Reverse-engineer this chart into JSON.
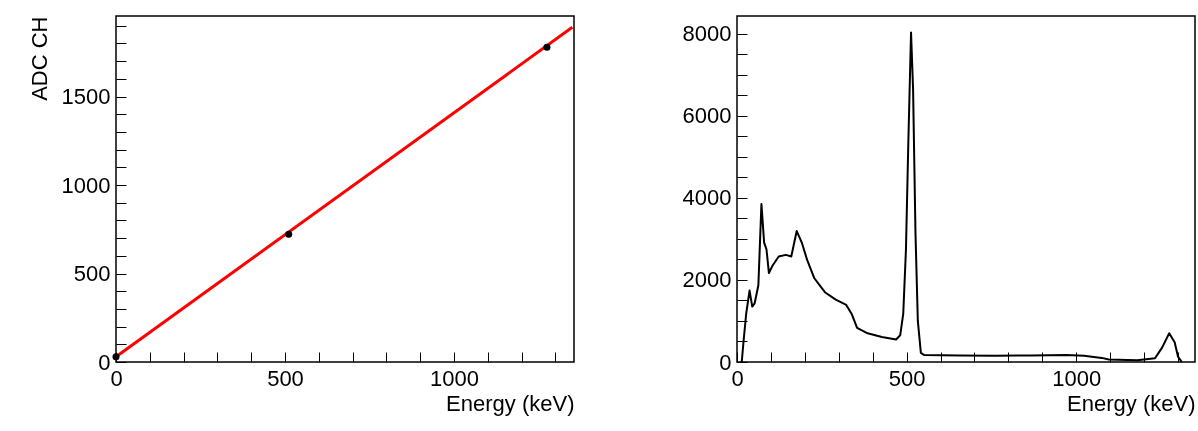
{
  "chart_data": [
    {
      "type": "line",
      "xlabel": "Energy (keV)",
      "ylabel": "ADC CH",
      "xlim": [
        0,
        1355
      ],
      "ylim": [
        0,
        1955
      ],
      "xticks": [
        0,
        {
          "value": 100,
          "label": null
        },
        {
          "value": 200,
          "label": null
        },
        {
          "value": 300,
          "label": null
        },
        {
          "value": 400,
          "label": null
        },
        500,
        {
          "value": 600,
          "label": null
        },
        {
          "value": 700,
          "label": null
        },
        {
          "value": 800,
          "label": null
        },
        {
          "value": 900,
          "label": null
        },
        1000,
        {
          "value": 1100,
          "label": null
        },
        {
          "value": 1200,
          "label": null
        },
        {
          "value": 1300,
          "label": null
        }
      ],
      "yticks": [
        0,
        {
          "value": 100,
          "label": null
        },
        {
          "value": 200,
          "label": null
        },
        {
          "value": 300,
          "label": null
        },
        {
          "value": 400,
          "label": null
        },
        500,
        {
          "value": 600,
          "label": null
        },
        {
          "value": 700,
          "label": null
        },
        {
          "value": 800,
          "label": null
        },
        {
          "value": 900,
          "label": null
        },
        1000,
        {
          "value": 1100,
          "label": null
        },
        {
          "value": 1200,
          "label": null
        },
        {
          "value": 1300,
          "label": null
        },
        {
          "value": 1400,
          "label": null
        },
        1500,
        {
          "value": 1600,
          "label": null
        },
        {
          "value": 1700,
          "label": null
        },
        {
          "value": 1800,
          "label": null
        },
        {
          "value": 1900,
          "label": null
        }
      ],
      "series": [
        {
          "type": "line",
          "color": "#ff0000",
          "x": [
            0,
            1350
          ],
          "values": [
            30,
            1891
          ]
        },
        {
          "type": "scatter",
          "color": "#000000",
          "marker": "circle",
          "x": [
            0,
            511,
            1275
          ],
          "values": [
            30,
            722,
            1778
          ]
        }
      ]
    },
    {
      "type": "line",
      "xlabel": "Energy (keV)",
      "xlim": [
        0,
        1350
      ],
      "ylim": [
        0,
        8430
      ],
      "xticks": [
        0,
        {
          "value": 100,
          "label": null
        },
        {
          "value": 200,
          "label": null
        },
        {
          "value": 300,
          "label": null
        },
        {
          "value": 400,
          "label": null
        },
        500,
        {
          "value": 600,
          "label": null
        },
        {
          "value": 700,
          "label": null
        },
        {
          "value": 800,
          "label": null
        },
        {
          "value": 900,
          "label": null
        },
        1000,
        {
          "value": 1100,
          "label": null
        },
        {
          "value": 1200,
          "label": null
        },
        {
          "value": 1300,
          "label": null
        }
      ],
      "yticks": [
        0,
        {
          "value": 500,
          "label": null
        },
        {
          "value": 1000,
          "label": null
        },
        {
          "value": 1500,
          "label": null
        },
        2000,
        {
          "value": 2500,
          "label": null
        },
        {
          "value": 3000,
          "label": null
        },
        {
          "value": 3500,
          "label": null
        },
        4000,
        {
          "value": 4500,
          "label": null
        },
        {
          "value": 5000,
          "label": null
        },
        {
          "value": 5500,
          "label": null
        },
        6000,
        {
          "value": 6500,
          "label": null
        },
        {
          "value": 7000,
          "label": null
        },
        {
          "value": 7500,
          "label": null
        },
        8000
      ],
      "series": [
        {
          "type": "line",
          "color": "#000000",
          "x": [
            14,
            19,
            27,
            37,
            45,
            52,
            63,
            72,
            80,
            87,
            94,
            105,
            123,
            144,
            160,
            176,
            191,
            207,
            228,
            259,
            291,
            322,
            338,
            354,
            385,
            427,
            469,
            481,
            490,
            498,
            505,
            513,
            519,
            526,
            533,
            542,
            552,
            657,
            762,
            866,
            971,
            1023,
            1075,
            1096,
            1180,
            1232,
            1253,
            1274,
            1290,
            1300,
            1311
          ],
          "values": [
            0,
            480,
            1170,
            1740,
            1350,
            1430,
            1870,
            3850,
            2910,
            2740,
            2170,
            2350,
            2570,
            2610,
            2570,
            3190,
            2910,
            2480,
            2040,
            1700,
            1520,
            1390,
            1170,
            830,
            700,
            610,
            550,
            650,
            1170,
            2740,
            5350,
            8030,
            6650,
            3170,
            1000,
            220,
            170,
            160,
            150,
            160,
            170,
            150,
            100,
            60,
            40,
            90,
            350,
            700,
            480,
            130,
            0
          ]
        }
      ]
    }
  ]
}
